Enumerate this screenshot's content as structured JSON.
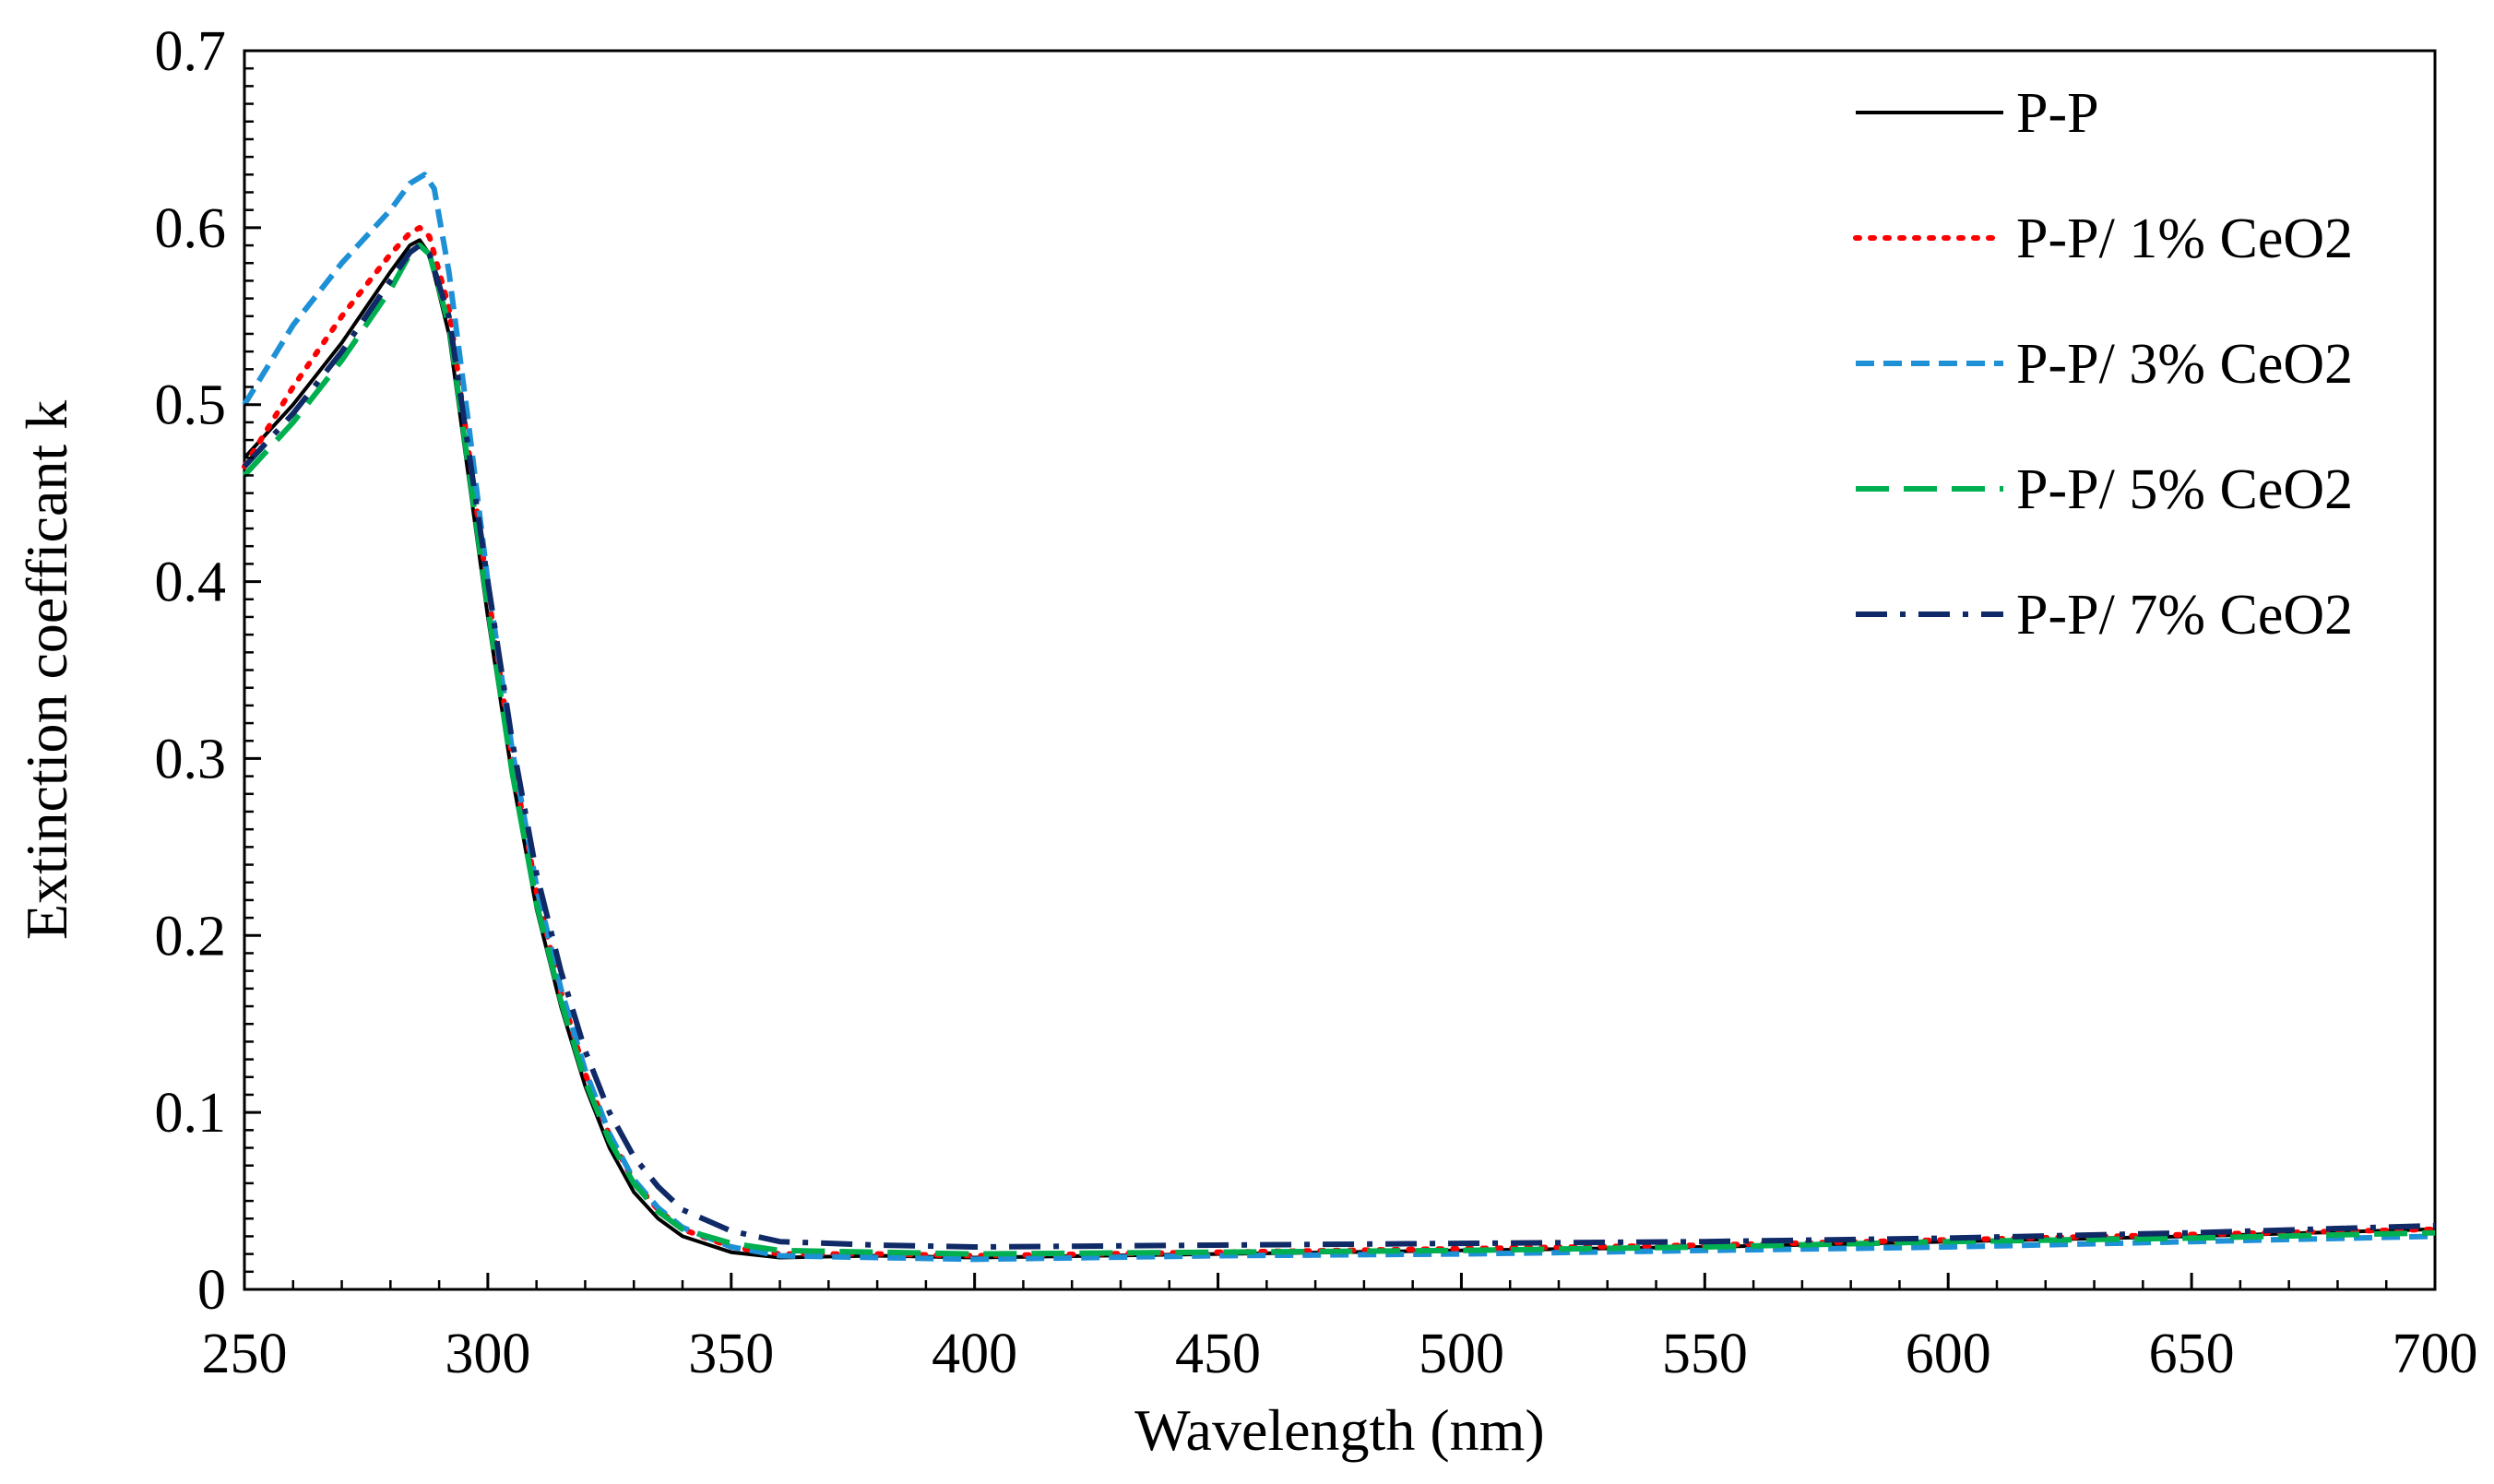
{
  "chart_data": {
    "type": "line",
    "title": "",
    "xlabel": "Wavelength (nm)",
    "ylabel": "Extinction coefficant k",
    "xlim": [
      250,
      700
    ],
    "ylim": [
      0,
      0.7
    ],
    "x_ticks": [
      250,
      300,
      350,
      400,
      450,
      500,
      550,
      600,
      650,
      700
    ],
    "y_ticks": [
      0,
      0.1,
      0.2,
      0.3,
      0.4,
      0.5,
      0.6,
      0.7
    ],
    "x_tick_labels": [
      "250",
      "300",
      "350",
      "400",
      "450",
      "500",
      "550",
      "600",
      "650",
      "700"
    ],
    "y_tick_labels": [
      "0",
      "0.1",
      "0.2",
      "0.3",
      "0.4",
      "0.5",
      "0.6",
      "0.7"
    ],
    "grid": false,
    "legend_position": "top-right",
    "series": [
      {
        "name": "P-P",
        "color": "#000000",
        "dash": "solid",
        "x": [
          250,
          260,
          270,
          280,
          284,
          286,
          288,
          292,
          296,
          300,
          305,
          310,
          315,
          320,
          325,
          330,
          335,
          340,
          350,
          360,
          380,
          400,
          450,
          500,
          550,
          600,
          650,
          700
        ],
        "y": [
          0.47,
          0.5,
          0.535,
          0.575,
          0.59,
          0.593,
          0.585,
          0.54,
          0.46,
          0.38,
          0.29,
          0.215,
          0.16,
          0.115,
          0.08,
          0.055,
          0.04,
          0.03,
          0.021,
          0.018,
          0.019,
          0.018,
          0.02,
          0.022,
          0.024,
          0.027,
          0.03,
          0.034
        ]
      },
      {
        "name": "P-P/ 1% CeO2",
        "color": "#ff0000",
        "dash": "dotted",
        "x": [
          250,
          260,
          270,
          280,
          284,
          286,
          288,
          292,
          296,
          300,
          305,
          310,
          315,
          320,
          325,
          330,
          335,
          340,
          350,
          360,
          380,
          400,
          450,
          500,
          550,
          600,
          650,
          700
        ],
        "y": [
          0.465,
          0.51,
          0.55,
          0.585,
          0.597,
          0.6,
          0.595,
          0.555,
          0.475,
          0.395,
          0.3,
          0.225,
          0.168,
          0.122,
          0.087,
          0.061,
          0.045,
          0.034,
          0.024,
          0.02,
          0.02,
          0.019,
          0.021,
          0.023,
          0.025,
          0.028,
          0.031,
          0.034
        ]
      },
      {
        "name": "P-P/ 3% CeO2",
        "color": "#1e90d6",
        "dash": "dashed",
        "x": [
          250,
          260,
          270,
          280,
          284,
          287,
          289,
          292,
          296,
          300,
          305,
          310,
          315,
          320,
          325,
          330,
          335,
          340,
          350,
          360,
          380,
          400,
          450,
          500,
          550,
          600,
          650,
          700
        ],
        "y": [
          0.5,
          0.545,
          0.58,
          0.61,
          0.625,
          0.63,
          0.622,
          0.575,
          0.49,
          0.4,
          0.305,
          0.228,
          0.17,
          0.124,
          0.088,
          0.062,
          0.046,
          0.035,
          0.024,
          0.019,
          0.018,
          0.017,
          0.019,
          0.02,
          0.022,
          0.024,
          0.027,
          0.03
        ]
      },
      {
        "name": "P-P/ 5% CeO2",
        "color": "#00b050",
        "dash": "longdash",
        "x": [
          250,
          260,
          270,
          280,
          284,
          286,
          288,
          292,
          296,
          300,
          305,
          310,
          315,
          320,
          325,
          330,
          335,
          340,
          350,
          360,
          380,
          400,
          450,
          500,
          550,
          600,
          650,
          700
        ],
        "y": [
          0.46,
          0.49,
          0.525,
          0.565,
          0.585,
          0.59,
          0.585,
          0.545,
          0.465,
          0.385,
          0.292,
          0.218,
          0.163,
          0.118,
          0.084,
          0.06,
          0.044,
          0.034,
          0.026,
          0.022,
          0.021,
          0.02,
          0.021,
          0.022,
          0.024,
          0.027,
          0.029,
          0.032
        ]
      },
      {
        "name": "P-P/ 7% CeO2",
        "color": "#0f2a66",
        "dash": "dashdot",
        "x": [
          250,
          260,
          270,
          280,
          284,
          286,
          288,
          292,
          296,
          300,
          305,
          310,
          315,
          320,
          325,
          330,
          335,
          340,
          350,
          360,
          380,
          400,
          450,
          500,
          550,
          600,
          650,
          700
        ],
        "y": [
          0.465,
          0.495,
          0.53,
          0.57,
          0.586,
          0.59,
          0.585,
          0.55,
          0.475,
          0.4,
          0.31,
          0.235,
          0.18,
          0.135,
          0.1,
          0.075,
          0.058,
          0.045,
          0.033,
          0.027,
          0.025,
          0.024,
          0.025,
          0.026,
          0.027,
          0.029,
          0.032,
          0.036
        ]
      }
    ]
  }
}
